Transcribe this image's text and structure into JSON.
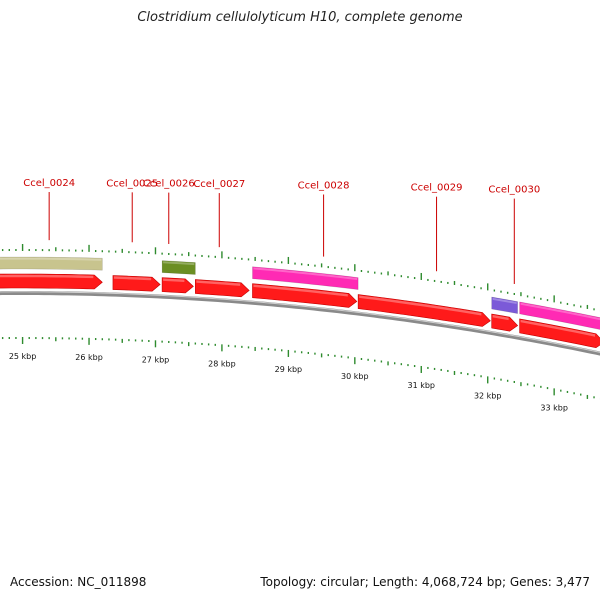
{
  "title": "Clostridium cellulolyticum H10, complete genome",
  "footer": {
    "accession_label": "Accession:",
    "accession": "NC_011898",
    "topology_label": "Topology:",
    "topology": "circular",
    "length_label": "Length:",
    "length": "4,068,724 bp",
    "genes_label": "Genes:",
    "genes": "3,477"
  },
  "colors": {
    "background": "#ffffff",
    "cds_red": "#ff1a1a",
    "gene_label_red": "#cc0000",
    "tick_green": "#2e8b2e",
    "backbone_gray": "#8a8a8a",
    "feature_khaki": "#c8c48e",
    "feature_olive": "#6b8e23",
    "feature_magenta": "#ff2ab4",
    "feature_purple": "#7b5ad8"
  },
  "map_view": {
    "start_kbp": 24.6,
    "end_kbp": 33.75,
    "scale_labels": [
      {
        "kbp": 25,
        "text": "25 kbp"
      },
      {
        "kbp": 26,
        "text": "26 kbp"
      },
      {
        "kbp": 27,
        "text": "27 kbp"
      },
      {
        "kbp": 28,
        "text": "28 kbp"
      },
      {
        "kbp": 29,
        "text": "29 kbp"
      },
      {
        "kbp": 30,
        "text": "30 kbp"
      },
      {
        "kbp": 31,
        "text": "31 kbp"
      },
      {
        "kbp": 32,
        "text": "32 kbp"
      },
      {
        "kbp": 33,
        "text": "33 kbp"
      }
    ],
    "gene_labels": [
      {
        "name": "Ccel_0024",
        "anchor_kbp": 25.4
      },
      {
        "name": "Ccel_0025",
        "anchor_kbp": 26.65
      },
      {
        "name": "Ccel_0026",
        "anchor_kbp": 27.2
      },
      {
        "name": "Ccel_0027",
        "anchor_kbp": 27.96
      },
      {
        "name": "Ccel_0028",
        "anchor_kbp": 29.53
      },
      {
        "name": "Ccel_0029",
        "anchor_kbp": 31.23
      },
      {
        "name": "Ccel_0030",
        "anchor_kbp": 32.4
      }
    ],
    "cds_arrows": [
      {
        "start_kbp": 24.6,
        "end_kbp": 26.2,
        "strand": "+"
      },
      {
        "start_kbp": 26.36,
        "end_kbp": 27.07,
        "strand": "+"
      },
      {
        "start_kbp": 27.1,
        "end_kbp": 27.57,
        "strand": "+"
      },
      {
        "start_kbp": 27.6,
        "end_kbp": 28.41,
        "strand": "+"
      },
      {
        "start_kbp": 28.46,
        "end_kbp": 30.03,
        "strand": "+"
      },
      {
        "start_kbp": 30.05,
        "end_kbp": 32.04,
        "strand": "+"
      },
      {
        "start_kbp": 32.06,
        "end_kbp": 32.45,
        "strand": "+"
      },
      {
        "start_kbp": 32.48,
        "end_kbp": 33.75,
        "strand": "+"
      }
    ],
    "features": [
      {
        "start_kbp": 24.6,
        "end_kbp": 26.2,
        "color": "#c8c48e",
        "kind": "feature-khaki"
      },
      {
        "start_kbp": 27.1,
        "end_kbp": 27.6,
        "color": "#6b8e23",
        "kind": "feature-olive"
      },
      {
        "start_kbp": 28.46,
        "end_kbp": 30.05,
        "color": "#ff2ab4",
        "kind": "feature-magenta"
      },
      {
        "start_kbp": 32.06,
        "end_kbp": 32.45,
        "color": "#7b5ad8",
        "kind": "feature-purple"
      },
      {
        "start_kbp": 32.48,
        "end_kbp": 33.75,
        "color": "#ff2ab4",
        "kind": "feature-magenta"
      }
    ]
  }
}
